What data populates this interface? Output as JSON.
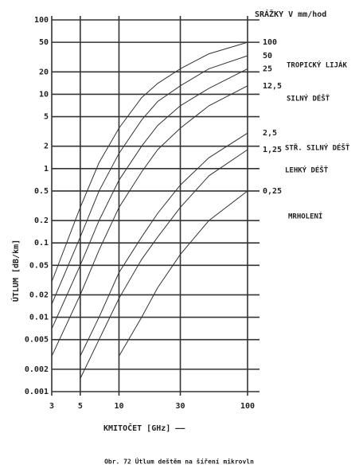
{
  "chart_data": {
    "type": "line",
    "xlabel": "KMITOČET [GHz] ——",
    "ylabel": "ÚTLUM [dB/km]",
    "legend_title": "SRÁŽKY V mm/hod",
    "caption": "Obr. 72 Útlum deštěm na šíření mikrovln",
    "log_x": true,
    "log_y": true,
    "grid": true,
    "color": "#333333",
    "xlim": [
      3,
      100
    ],
    "ylim": [
      0.001,
      100
    ],
    "xticks": [
      3,
      5,
      10,
      30,
      100
    ],
    "yticks": [
      100,
      50,
      20,
      10,
      5,
      2,
      1,
      0.5,
      0.2,
      0.1,
      0.05,
      0.02,
      0.01,
      0.005,
      0.002,
      0.001
    ],
    "x": [
      3,
      5,
      7,
      10,
      15,
      20,
      30,
      50,
      100
    ],
    "series": [
      {
        "name": "100",
        "values": [
          0.03,
          0.3,
          1.2,
          3.5,
          9,
          14,
          22,
          35,
          50
        ]
      },
      {
        "name": "50",
        "values": [
          0.015,
          0.12,
          0.5,
          1.6,
          4.5,
          8,
          13,
          22,
          33
        ]
      },
      {
        "name": "25",
        "values": [
          0.007,
          0.05,
          0.2,
          0.7,
          2,
          3.8,
          7,
          12,
          22
        ]
      },
      {
        "name": "12,5",
        "values": [
          0.003,
          0.02,
          0.08,
          0.3,
          0.9,
          1.8,
          3.5,
          7,
          13
        ]
      },
      {
        "name": "2,5",
        "values": [
          null,
          0.003,
          0.01,
          0.04,
          0.12,
          0.25,
          0.6,
          1.4,
          3
        ]
      },
      {
        "name": "1,25",
        "values": [
          null,
          0.0015,
          0.005,
          0.018,
          0.06,
          0.12,
          0.3,
          0.8,
          1.8
        ]
      },
      {
        "name": "0,25",
        "values": [
          null,
          null,
          null,
          0.003,
          0.01,
          0.025,
          0.07,
          0.2,
          0.5
        ]
      }
    ],
    "annotations": [
      "TROPICKÝ LIJÁK",
      "SILNÝ DÉŠŤ",
      "STŘ. SILNÝ DÉŠŤ",
      "LEHKÝ DÉŠŤ",
      "MRHOLENÍ"
    ]
  }
}
